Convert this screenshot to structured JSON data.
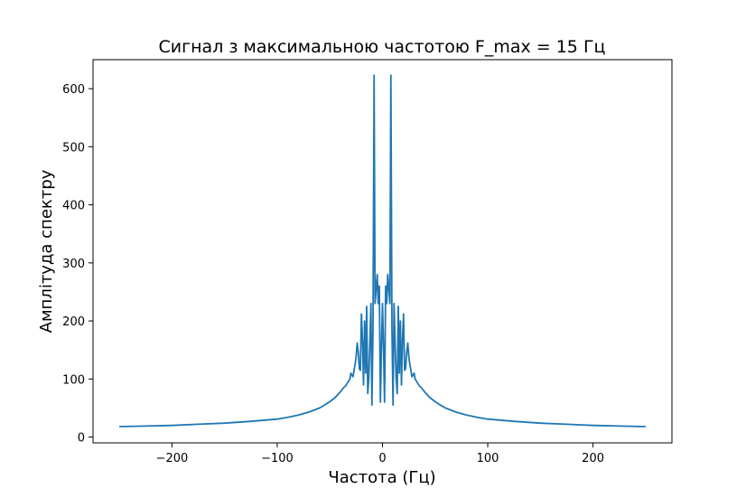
{
  "chart_data": {
    "type": "line",
    "title": "Сигнал з максимальною частотою F_max = 15 Гц",
    "xlabel": "Частота (Гц)",
    "ylabel": "Амплітуда спектру",
    "xlim": [
      -275,
      275
    ],
    "ylim": [
      -10,
      650
    ],
    "xticks": [
      -200,
      -100,
      0,
      100,
      200
    ],
    "xtick_labels": [
      "−200",
      "−100",
      "0",
      "100",
      "200"
    ],
    "yticks": [
      0,
      100,
      200,
      300,
      400,
      500,
      600
    ],
    "ytick_labels": [
      "0",
      "100",
      "200",
      "300",
      "400",
      "500",
      "600"
    ],
    "grid": false,
    "legend": "none",
    "series_color": "#1f77b4",
    "series": [
      {
        "x": [
          -250,
          -225,
          -200,
          -175,
          -150,
          -125,
          -100,
          -90,
          -80,
          -70,
          -60,
          -55,
          -50,
          -45,
          -40,
          -37,
          -35,
          -33,
          -31,
          -30,
          -28,
          -27,
          -26,
          -25,
          -24,
          -23,
          -22,
          -21,
          -20,
          -19,
          -18,
          -17,
          -16,
          -15,
          -14,
          -13,
          -12,
          -11,
          -10,
          -9,
          -8,
          -7,
          -6,
          -5,
          -4,
          -3,
          -2,
          -1,
          0,
          1,
          2,
          3,
          4,
          5,
          6,
          7,
          8,
          9,
          10,
          11,
          12,
          13,
          14,
          15,
          16,
          17,
          18,
          19,
          20,
          21,
          22,
          23,
          24,
          25,
          26,
          27,
          28,
          30,
          31,
          33,
          35,
          37,
          40,
          45,
          50,
          55,
          60,
          70,
          80,
          90,
          100,
          125,
          150,
          175,
          200,
          225,
          250
        ],
        "y": [
          18,
          19,
          20,
          22,
          24,
          27,
          31,
          34,
          38,
          43,
          50,
          55,
          61,
          68,
          78,
          85,
          88,
          94,
          100,
          110,
          104,
          115,
          125,
          140,
          162,
          145,
          118,
          115,
          212,
          165,
          90,
          200,
          110,
          225,
          75,
          100,
          160,
          230,
          55,
          185,
          623,
          230,
          255,
          280,
          230,
          260,
          60,
          150,
          230,
          150,
          60,
          260,
          230,
          280,
          255,
          230,
          623,
          185,
          55,
          230,
          160,
          100,
          75,
          225,
          110,
          200,
          90,
          165,
          212,
          115,
          118,
          145,
          162,
          140,
          125,
          115,
          104,
          110,
          100,
          94,
          88,
          85,
          78,
          68,
          61,
          55,
          50,
          43,
          38,
          34,
          31,
          27,
          24,
          22,
          20,
          19,
          18
        ]
      }
    ]
  }
}
